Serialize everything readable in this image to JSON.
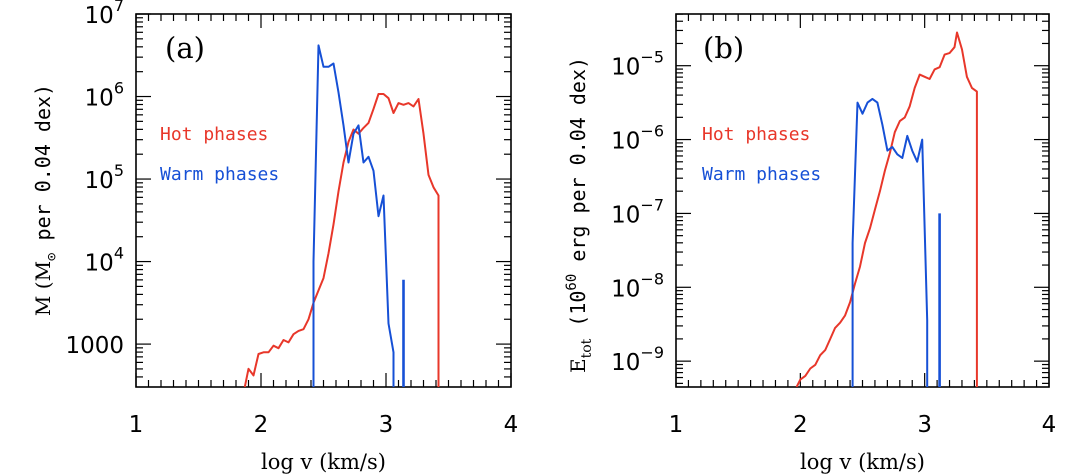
{
  "colors": {
    "hot": "#e8372a",
    "warm": "#1650d6",
    "axis": "#000000"
  },
  "chart_data": [
    {
      "type": "line",
      "panel_label": "(a)",
      "xlabel": "log v (km/s)",
      "ylabel": "M (M⊙ per 0.04 dex)",
      "ylabel_parts": {
        "prefix": "M (M",
        "sub": "⊙",
        "suffix": " per 0.04 dex)"
      },
      "xlim": [
        1,
        4
      ],
      "ylim_log10": [
        2.48,
        7
      ],
      "log_y": true,
      "x_ticks": [
        "1",
        "2",
        "3",
        "4"
      ],
      "x_tick_values": [
        1,
        2,
        3,
        4
      ],
      "y_ticks": [
        {
          "value_log10": 3,
          "label": "1000"
        },
        {
          "value_log10": 4,
          "label": "10",
          "exp": "4"
        },
        {
          "value_log10": 5,
          "label": "10",
          "exp": "5"
        },
        {
          "value_log10": 6,
          "label": "10",
          "exp": "6"
        },
        {
          "value_log10": 7,
          "label": "10",
          "exp": "7"
        }
      ],
      "legend": [
        {
          "label": "Hot phases",
          "color": "#e8372a"
        },
        {
          "label": "Warm phases",
          "color": "#1650d6"
        }
      ],
      "series": [
        {
          "name": "Hot phases",
          "color": "#e8372a",
          "x": [
            1.87,
            1.9,
            1.94,
            1.98,
            2.02,
            2.06,
            2.1,
            2.14,
            2.18,
            2.22,
            2.26,
            2.3,
            2.34,
            2.38,
            2.42,
            2.46,
            2.5,
            2.54,
            2.58,
            2.62,
            2.66,
            2.7,
            2.74,
            2.78,
            2.82,
            2.86,
            2.9,
            2.94,
            2.98,
            3.02,
            3.06,
            3.1,
            3.14,
            3.18,
            3.22,
            3.26,
            3.3,
            3.34,
            3.38,
            3.42,
            3.42
          ],
          "y_log10": [
            2.48,
            2.7,
            2.62,
            2.88,
            2.9,
            2.9,
            2.98,
            2.95,
            3.05,
            3.02,
            3.12,
            3.16,
            3.18,
            3.3,
            3.5,
            3.65,
            3.8,
            4.1,
            4.45,
            4.85,
            5.2,
            5.45,
            5.6,
            5.55,
            5.62,
            5.68,
            5.85,
            6.03,
            6.03,
            5.98,
            5.8,
            5.92,
            5.9,
            5.92,
            5.88,
            5.97,
            5.55,
            5.05,
            4.9,
            4.8,
            2.48
          ]
        },
        {
          "name": "Warm phases",
          "color": "#1650d6",
          "x": [
            2.42,
            2.42,
            2.46,
            2.5,
            2.54,
            2.58,
            2.62,
            2.66,
            2.7,
            2.74,
            2.78,
            2.82,
            2.86,
            2.9,
            2.94,
            2.98,
            3.02,
            3.06,
            3.06
          ],
          "y_log10": [
            2.48,
            4.0,
            6.62,
            6.36,
            6.36,
            6.4,
            6.05,
            5.65,
            5.2,
            5.55,
            5.65,
            5.2,
            5.27,
            5.1,
            4.55,
            4.8,
            3.25,
            2.9,
            2.48
          ]
        },
        {
          "name": "Warm phases spike",
          "color": "#1650d6",
          "x": [
            3.14,
            3.14
          ],
          "y_log10": [
            2.48,
            3.78
          ]
        }
      ]
    },
    {
      "type": "line",
      "panel_label": "(b)",
      "xlabel": "log v (km/s)",
      "ylabel": "Etot (10^60 erg per 0.04 dex)",
      "ylabel_parts": {
        "prefix": "E",
        "sub": "tot",
        "mid": " (10",
        "sup": "60",
        "suffix": " erg per 0.04 dex)"
      },
      "xlim": [
        1,
        4
      ],
      "ylim_log10": [
        -9.35,
        -4.3
      ],
      "log_y": true,
      "x_ticks": [
        "1",
        "2",
        "3",
        "4"
      ],
      "x_tick_values": [
        1,
        2,
        3,
        4
      ],
      "y_ticks": [
        {
          "value_log10": -9,
          "label": "10",
          "exp": "−9"
        },
        {
          "value_log10": -8,
          "label": "10",
          "exp": "−8"
        },
        {
          "value_log10": -7,
          "label": "10",
          "exp": "−7"
        },
        {
          "value_log10": -6,
          "label": "10",
          "exp": "−6"
        },
        {
          "value_log10": -5,
          "label": "10",
          "exp": "−5"
        }
      ],
      "legend": [
        {
          "label": "Hot phases",
          "color": "#e8372a"
        },
        {
          "label": "Warm phases",
          "color": "#1650d6"
        }
      ],
      "series": [
        {
          "name": "Hot phases",
          "color": "#e8372a",
          "x": [
            1.97,
            2.0,
            2.04,
            2.08,
            2.12,
            2.16,
            2.2,
            2.24,
            2.28,
            2.32,
            2.36,
            2.4,
            2.44,
            2.48,
            2.52,
            2.56,
            2.6,
            2.64,
            2.68,
            2.72,
            2.76,
            2.8,
            2.84,
            2.88,
            2.92,
            2.96,
            3.0,
            3.04,
            3.08,
            3.12,
            3.16,
            3.2,
            3.24,
            3.26,
            3.3,
            3.34,
            3.38,
            3.42,
            3.42
          ],
          "y_log10": [
            -9.35,
            -9.25,
            -9.2,
            -9.1,
            -9.05,
            -8.92,
            -8.85,
            -8.7,
            -8.55,
            -8.48,
            -8.38,
            -8.2,
            -7.95,
            -7.72,
            -7.4,
            -7.2,
            -6.95,
            -6.7,
            -6.42,
            -6.18,
            -5.9,
            -5.75,
            -5.7,
            -5.55,
            -5.3,
            -5.12,
            -5.15,
            -5.18,
            -5.05,
            -5.02,
            -4.85,
            -4.83,
            -4.75,
            -4.55,
            -4.78,
            -5.15,
            -5.3,
            -5.35,
            -9.35
          ]
        },
        {
          "name": "Warm phases",
          "color": "#1650d6",
          "x": [
            2.42,
            2.42,
            2.46,
            2.5,
            2.54,
            2.58,
            2.62,
            2.66,
            2.7,
            2.74,
            2.78,
            2.82,
            2.86,
            2.9,
            2.94,
            2.98,
            3.02,
            3.02
          ],
          "y_log10": [
            -9.35,
            -7.4,
            -5.5,
            -5.65,
            -5.5,
            -5.45,
            -5.5,
            -5.8,
            -6.15,
            -6.1,
            -6.2,
            -6.25,
            -5.95,
            -6.15,
            -6.3,
            -6.0,
            -8.45,
            -9.35
          ]
        },
        {
          "name": "Warm phases spike",
          "color": "#1650d6",
          "x": [
            3.12,
            3.12
          ],
          "y_log10": [
            -9.35,
            -7.0
          ]
        }
      ]
    }
  ]
}
